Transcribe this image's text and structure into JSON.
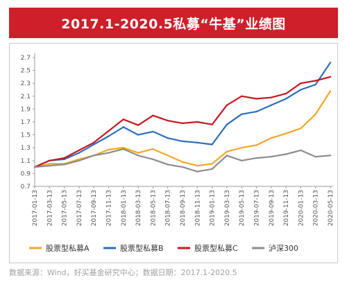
{
  "title": "2017.1-2020.5私募“牛基”业绩图",
  "source_note": "数据来源：Wind，好买基金研究中心；数据日期：2017.1-2020.5",
  "colors": {
    "title_bg": "#cf1f2a",
    "series_a": "#f5a623",
    "series_b": "#2a6ebb",
    "series_c": "#c8161e",
    "series_d": "#8c8c8c"
  },
  "chart_data": {
    "type": "line",
    "grid": false,
    "legend_position": "bottom",
    "ylim": [
      0.7,
      2.7
    ],
    "yticks": [
      "2.7",
      "2.5",
      "2.3",
      "2.1",
      "1.9",
      "1.7",
      "1.5",
      "1.3",
      "1.1",
      "0.9",
      "0.7"
    ],
    "xticks": [
      "2017-01-13",
      "2017-03-13",
      "2017-05-13",
      "2017-07-13",
      "2017-09-13",
      "2017-11-13",
      "2018-01-13",
      "2018-03-13",
      "2018-05-13",
      "2018-07-13",
      "2018-09-13",
      "2018-11-13",
      "2019-01-13",
      "2019-03-13",
      "2019-05-13",
      "2019-07-13",
      "2019-09-13",
      "2019-11-13",
      "2020-01-13",
      "2020-03-13",
      "2020-05-13"
    ],
    "x": [
      "2017-01-13",
      "2017-03-13",
      "2017-05-13",
      "2017-07-13",
      "2017-09-13",
      "2017-11-13",
      "2018-01-13",
      "2018-03-13",
      "2018-05-13",
      "2018-07-13",
      "2018-09-13",
      "2018-11-13",
      "2019-01-13",
      "2019-03-13",
      "2019-05-13",
      "2019-07-13",
      "2019-09-13",
      "2019-11-13",
      "2020-01-13",
      "2020-03-13",
      "2020-05-13"
    ],
    "series": [
      {
        "name": "股票型私募A",
        "color": "#f5a623",
        "values": [
          1.0,
          1.05,
          1.05,
          1.12,
          1.18,
          1.27,
          1.3,
          1.22,
          1.28,
          1.18,
          1.08,
          1.02,
          1.05,
          1.24,
          1.3,
          1.34,
          1.45,
          1.52,
          1.6,
          1.82,
          2.18
        ]
      },
      {
        "name": "股票型私募B",
        "color": "#2a6ebb",
        "values": [
          1.0,
          1.1,
          1.12,
          1.22,
          1.35,
          1.48,
          1.62,
          1.5,
          1.55,
          1.45,
          1.4,
          1.38,
          1.35,
          1.66,
          1.82,
          1.86,
          1.96,
          2.06,
          2.2,
          2.28,
          2.62
        ]
      },
      {
        "name": "股票型私募C",
        "color": "#c8161e",
        "values": [
          1.0,
          1.1,
          1.14,
          1.26,
          1.38,
          1.56,
          1.74,
          1.65,
          1.8,
          1.72,
          1.68,
          1.7,
          1.66,
          1.96,
          2.1,
          2.06,
          2.08,
          2.14,
          2.3,
          2.34,
          2.4
        ]
      },
      {
        "name": "泸深300",
        "color": "#8c8c8c",
        "values": [
          1.0,
          1.02,
          1.04,
          1.1,
          1.18,
          1.22,
          1.28,
          1.18,
          1.12,
          1.04,
          1.0,
          0.93,
          0.97,
          1.18,
          1.1,
          1.14,
          1.16,
          1.2,
          1.26,
          1.16,
          1.18
        ]
      }
    ]
  }
}
